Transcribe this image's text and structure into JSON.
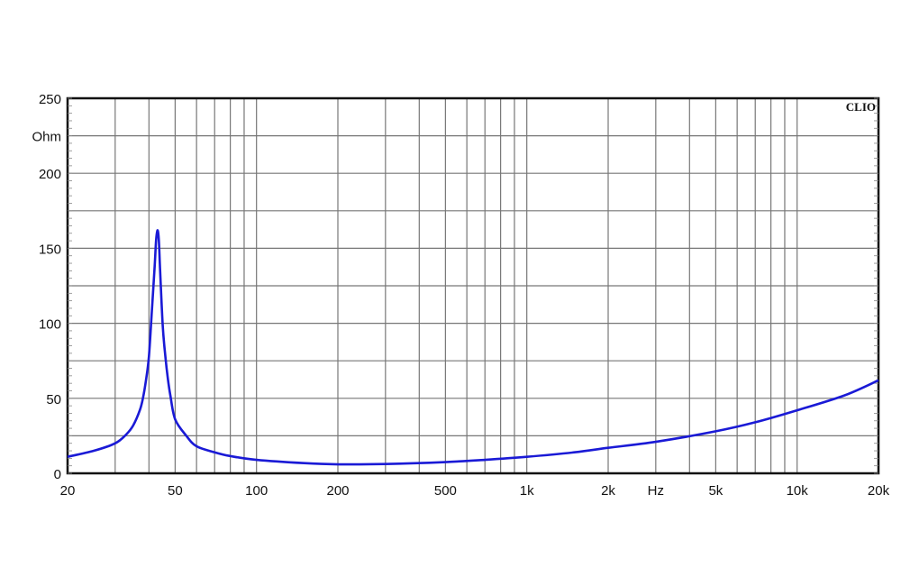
{
  "chart_data": {
    "type": "line",
    "brand": "CLIO",
    "xlabel": "Hz",
    "ylabel": "Ohm",
    "x_scale": "log",
    "xlim": [
      20,
      20000
    ],
    "ylim": [
      0,
      250
    ],
    "grid": true,
    "x_ticks": [
      {
        "value": 20,
        "label": "20"
      },
      {
        "value": 50,
        "label": "50"
      },
      {
        "value": 100,
        "label": "100"
      },
      {
        "value": 200,
        "label": "200"
      },
      {
        "value": 500,
        "label": "500"
      },
      {
        "value": 1000,
        "label": "1k"
      },
      {
        "value": 2000,
        "label": "2k"
      },
      {
        "value": 5000,
        "label": "5k"
      },
      {
        "value": 10000,
        "label": "10k"
      },
      {
        "value": 20000,
        "label": "20k"
      }
    ],
    "x_unit_at": 3000,
    "y_ticks": [
      {
        "value": 0,
        "label": "0"
      },
      {
        "value": 50,
        "label": "50"
      },
      {
        "value": 100,
        "label": "100"
      },
      {
        "value": 150,
        "label": "150"
      },
      {
        "value": 200,
        "label": "200"
      },
      {
        "value": 250,
        "label": "250"
      }
    ],
    "y_unit_at": 225,
    "series": [
      {
        "color": "#1a1ad6",
        "x": [
          20,
          25,
          30,
          33,
          35,
          37,
          38,
          39,
          40,
          41,
          42,
          42.5,
          43,
          43.5,
          44,
          45,
          46,
          47,
          48,
          50,
          55,
          60,
          70,
          80,
          100,
          150,
          200,
          300,
          500,
          700,
          1000,
          1500,
          2000,
          3000,
          5000,
          7000,
          10000,
          15000,
          20000
        ],
        "y": [
          11,
          15,
          20,
          26,
          32,
          42,
          50,
          62,
          78,
          108,
          138,
          155,
          162,
          156,
          135,
          98,
          78,
          63,
          52,
          36,
          25,
          18,
          14,
          11.5,
          9,
          6.8,
          6,
          6.2,
          7.5,
          9,
          11,
          14,
          17,
          21,
          28,
          34,
          42,
          52,
          62
        ]
      }
    ]
  }
}
